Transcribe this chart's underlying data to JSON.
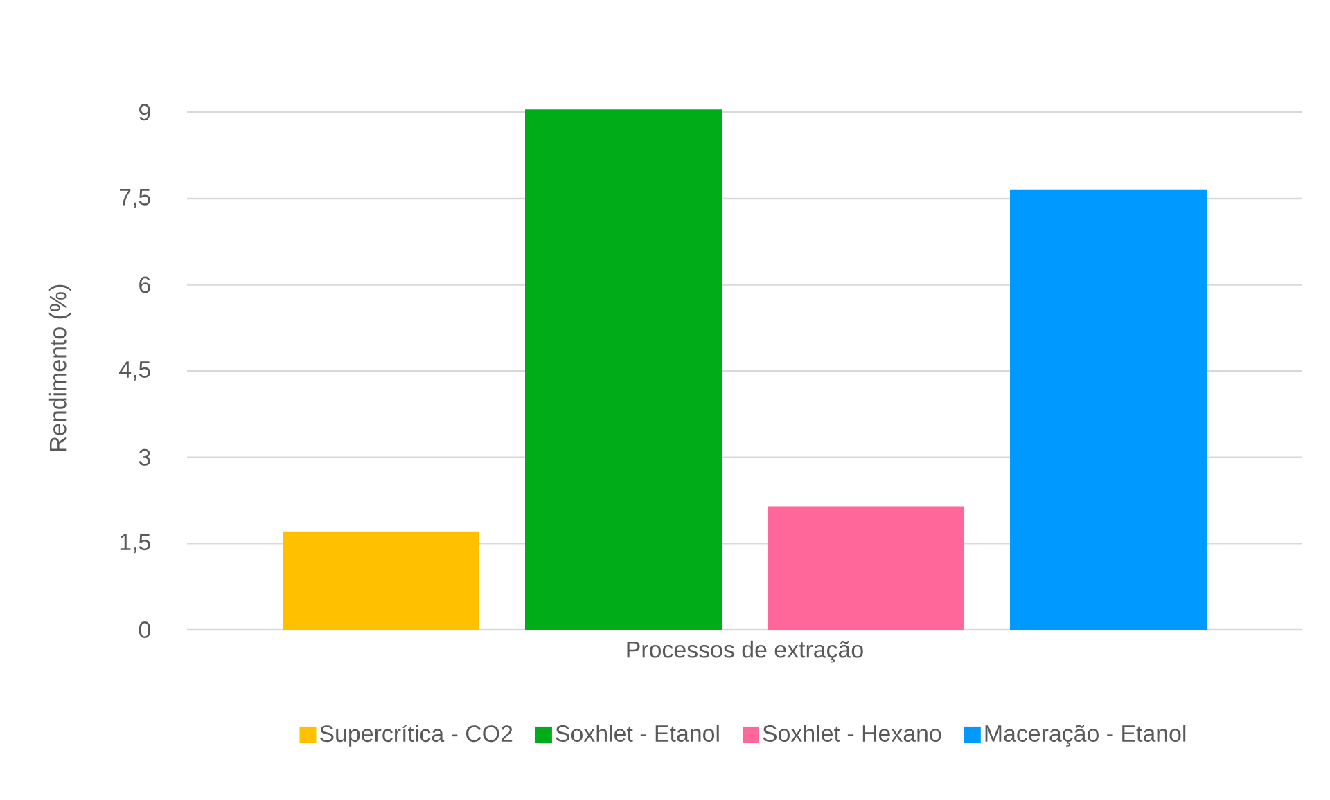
{
  "chart_data": {
    "type": "bar",
    "categories": [
      "Processos de extração"
    ],
    "ylabel": "Rendimento (%)",
    "series": [
      {
        "name": "Supercrítica - CO2",
        "color": "#ffc000",
        "values": [
          1.7
        ]
      },
      {
        "name": "Soxhlet - Etanol",
        "color": "#00ac18",
        "values": [
          9.05
        ]
      },
      {
        "name": "Soxhlet - Hexano",
        "color": "#ff6699",
        "values": [
          2.15
        ]
      },
      {
        "name": "Maceração - Etanol",
        "color": "#0099ff",
        "values": [
          7.66
        ]
      }
    ],
    "ylim": [
      0,
      9.1
    ],
    "yticks": [
      0,
      {
        "value": 1.5,
        "label": "1,5"
      },
      3,
      {
        "value": 4.5,
        "label": "4,5"
      },
      6,
      {
        "value": 7.5,
        "label": "7,5"
      },
      9
    ],
    "grid": "y",
    "legend": "bottom"
  }
}
